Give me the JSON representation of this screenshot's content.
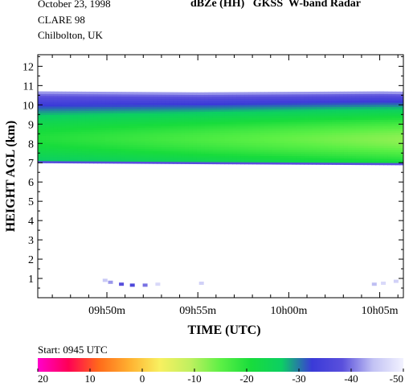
{
  "header": {
    "date": "October 23, 1998",
    "campaign": "CLARE 98",
    "location": "Chilbolton, UK",
    "title": "dBZe (HH)   GKSS  W-band Radar"
  },
  "footer": {
    "start_label": "Start: 0945 UTC"
  },
  "colors": {
    "colormap": [
      "#ff00cc",
      "#ff0055",
      "#ff6a1a",
      "#ffb030",
      "#f8f060",
      "#c0f060",
      "#5cf045",
      "#18dc3c",
      "#0ccf63",
      "#3a3ad8",
      "#5a50dc",
      "#c2c2f4",
      "#f2f2ff"
    ],
    "background": "#ffffff"
  },
  "chart_data": {
    "type": "heatmap",
    "title": "dBZe (HH)   GKSS  W-band Radar",
    "xlabel": "TIME (UTC)",
    "ylabel": "HEIGHT AGL (km)",
    "x_tick_labels": [
      "09h50m",
      "09h55m",
      "10h00m",
      "10h05m"
    ],
    "x_tick_values_min": [
      5,
      10,
      15,
      20
    ],
    "xlim_min": [
      1.2,
      21.3
    ],
    "y_ticks": [
      1,
      2,
      3,
      4,
      5,
      6,
      7,
      8,
      9,
      10,
      11,
      12
    ],
    "ylim": [
      0,
      12.6
    ],
    "colorbar": {
      "ticks": [
        20,
        10,
        0,
        -10,
        -20,
        -30,
        -40,
        -50
      ],
      "tick_labels": [
        "20",
        "10",
        "0",
        "-10",
        "-20",
        "-30",
        "-40",
        "-50"
      ],
      "range": [
        20,
        -50
      ],
      "unit": "dBZe"
    },
    "cloud_layer": {
      "time_min": [
        1.2,
        10,
        20,
        30,
        40,
        50,
        60,
        70,
        80,
        90,
        100,
        110,
        120,
        130,
        140,
        150,
        160,
        170,
        180,
        190,
        200,
        210,
        221
      ],
      "base_km": [
        7.0,
        6.95,
        6.9,
        6.85,
        6.85,
        6.8,
        6.75,
        6.75,
        6.7,
        6.7,
        6.65,
        6.55,
        6.55,
        6.6,
        6.6,
        6.65,
        6.65,
        6.65,
        6.7,
        6.7,
        6.7,
        6.7,
        6.7
      ],
      "top_km": [
        10.7,
        10.65,
        10.7,
        10.6,
        10.75,
        10.6,
        10.5,
        10.5,
        10.55,
        10.45,
        10.3,
        10.35,
        10.35,
        10.2,
        10.25,
        10.1,
        10.05,
        10.05,
        10.0,
        9.95,
        9.85,
        9.7,
        9.6
      ],
      "peak_dbze": -12,
      "edge_dbze": -42
    },
    "near_surface_echoes": [
      {
        "time_min": 4.9,
        "height_km": 0.9,
        "dbze": -45
      },
      {
        "time_min": 5.2,
        "height_km": 0.8,
        "dbze": -42
      },
      {
        "time_min": 5.8,
        "height_km": 0.7,
        "dbze": -38
      },
      {
        "time_min": 6.4,
        "height_km": 0.65,
        "dbze": -36
      },
      {
        "time_min": 7.1,
        "height_km": 0.65,
        "dbze": -40
      },
      {
        "time_min": 7.8,
        "height_km": 0.7,
        "dbze": -47
      },
      {
        "time_min": 10.2,
        "height_km": 0.75,
        "dbze": -46
      },
      {
        "time_min": 19.7,
        "height_km": 0.7,
        "dbze": -44
      },
      {
        "time_min": 20.2,
        "height_km": 0.75,
        "dbze": -47
      },
      {
        "time_min": 20.9,
        "height_km": 0.85,
        "dbze": -46
      }
    ]
  }
}
